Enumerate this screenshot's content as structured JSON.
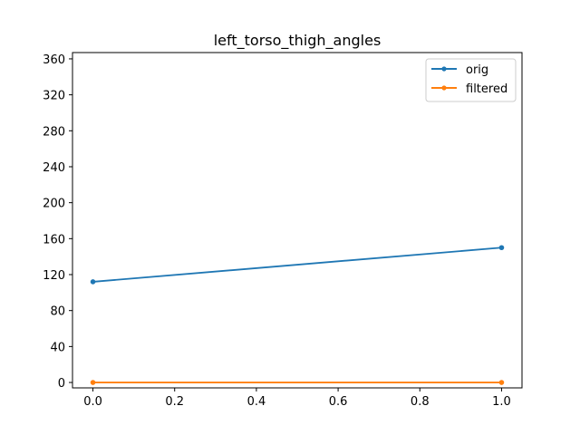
{
  "chart_data": {
    "type": "line",
    "title": "left_torso_thigh_angles",
    "xlabel": "",
    "ylabel": "",
    "xlim": [
      -0.05,
      1.05
    ],
    "ylim": [
      -6,
      367
    ],
    "xticks": [
      0.0,
      0.2,
      0.4,
      0.6,
      0.8,
      1.0
    ],
    "xtick_labels": [
      "0.0",
      "0.2",
      "0.4",
      "0.6",
      "0.8",
      "1.0"
    ],
    "yticks": [
      0,
      40,
      80,
      120,
      160,
      200,
      240,
      280,
      320,
      360
    ],
    "ytick_labels": [
      "0",
      "40",
      "80",
      "120",
      "160",
      "200",
      "240",
      "280",
      "320",
      "360"
    ],
    "grid": false,
    "legend_position": "top-right",
    "series": [
      {
        "name": "orig",
        "color": "#1f77b4",
        "marker": "circle",
        "x": [
          0.0,
          1.0
        ],
        "y": [
          112,
          150
        ]
      },
      {
        "name": "filtered",
        "color": "#ff7f0e",
        "marker": "circle",
        "x": [
          0.0,
          1.0
        ],
        "y": [
          0,
          0
        ]
      }
    ]
  }
}
